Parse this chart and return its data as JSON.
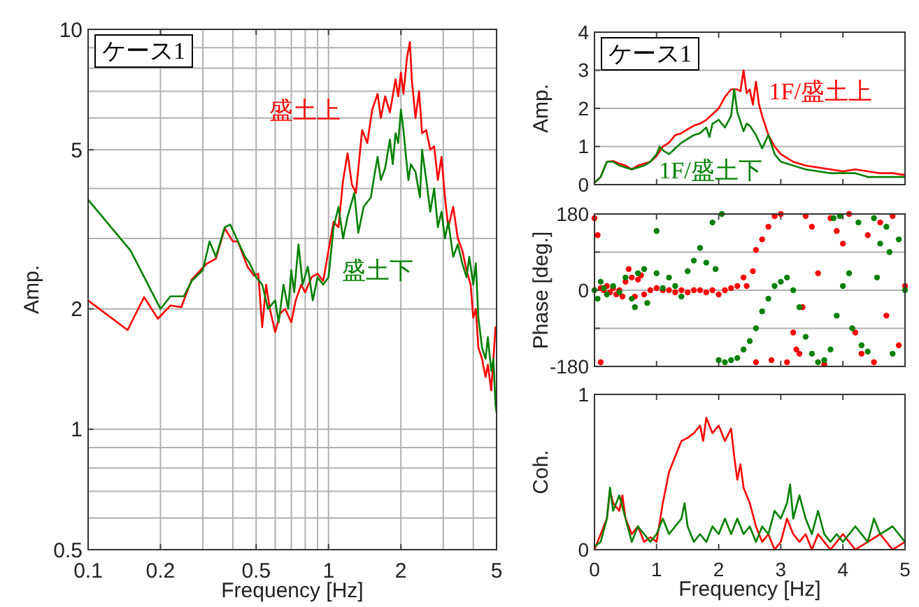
{
  "chart_data": [
    {
      "type": "line",
      "title": "ケース1",
      "xlabel": "Frequency [Hz]",
      "ylabel": "Amp.",
      "log": "xy",
      "grid": true,
      "xlim": [
        0.1,
        5
      ],
      "ylim": [
        0.5,
        10
      ],
      "xticks": [
        0.1,
        0.2,
        0.5,
        1,
        2,
        5
      ],
      "yticks": [
        0.5,
        1,
        2,
        5,
        10
      ],
      "series": [
        {
          "name": "盛土上",
          "color": "#ff0000",
          "x": [
            0.1,
            0.146,
            0.171,
            0.195,
            0.22,
            0.244,
            0.27,
            0.31,
            0.34,
            0.37,
            0.4,
            0.42,
            0.46,
            0.49,
            0.51,
            0.53,
            0.55,
            0.57,
            0.6,
            0.63,
            0.66,
            0.7,
            0.73,
            0.77,
            0.8,
            0.85,
            0.9,
            0.95,
            1.0,
            1.05,
            1.1,
            1.15,
            1.2,
            1.25,
            1.3,
            1.38,
            1.45,
            1.52,
            1.6,
            1.65,
            1.72,
            1.8,
            1.9,
            1.95,
            2.0,
            2.05,
            2.12,
            2.18,
            2.22,
            2.3,
            2.38,
            2.45,
            2.55,
            2.65,
            2.75,
            2.85,
            2.95,
            3.05,
            3.15,
            3.3,
            3.45,
            3.6,
            3.75,
            3.9,
            4.0,
            4.1,
            4.2,
            4.35,
            4.5,
            4.6,
            4.75,
            4.85,
            4.95,
            5.0
          ],
          "values": [
            2.1,
            1.77,
            2.14,
            1.89,
            2.04,
            2.02,
            2.37,
            2.59,
            2.67,
            3.18,
            2.95,
            2.95,
            2.55,
            2.42,
            2.45,
            1.8,
            2.3,
            2.0,
            1.75,
            1.95,
            2.0,
            1.85,
            2.1,
            2.3,
            2.2,
            2.4,
            2.45,
            2.35,
            2.8,
            3.3,
            3.2,
            4.2,
            4.9,
            4.1,
            3.9,
            5.6,
            5.2,
            6.3,
            6.9,
            6.0,
            6.8,
            6.2,
            7.5,
            6.8,
            7.8,
            6.9,
            8.5,
            9.3,
            7.5,
            6.0,
            7.0,
            5.5,
            5.6,
            5.0,
            5.1,
            4.2,
            4.8,
            3.8,
            3.2,
            3.6,
            3.0,
            2.8,
            2.5,
            2.3,
            1.9,
            2.0,
            1.6,
            1.5,
            1.35,
            1.45,
            1.25,
            1.5,
            1.8,
            1.75
          ]
        },
        {
          "name": "盛土下",
          "color": "#008000",
          "x": [
            0.1,
            0.15,
            0.2,
            0.22,
            0.25,
            0.27,
            0.3,
            0.32,
            0.34,
            0.37,
            0.39,
            0.42,
            0.45,
            0.47,
            0.5,
            0.53,
            0.56,
            0.6,
            0.62,
            0.65,
            0.68,
            0.7,
            0.72,
            0.75,
            0.78,
            0.82,
            0.86,
            0.9,
            0.95,
            1.0,
            1.05,
            1.1,
            1.15,
            1.2,
            1.28,
            1.33,
            1.4,
            1.5,
            1.55,
            1.6,
            1.65,
            1.72,
            1.8,
            1.85,
            1.9,
            1.95,
            2.0,
            2.05,
            2.1,
            2.15,
            2.2,
            2.3,
            2.4,
            2.45,
            2.55,
            2.65,
            2.75,
            2.85,
            2.95,
            3.05,
            3.15,
            3.3,
            3.45,
            3.6,
            3.75,
            3.85,
            4.0,
            4.1,
            4.2,
            4.35,
            4.5,
            4.6,
            4.75,
            4.85,
            4.95,
            5.0
          ],
          "values": [
            3.75,
            2.8,
            2.0,
            2.15,
            2.15,
            2.35,
            2.5,
            2.95,
            2.7,
            3.2,
            3.25,
            2.95,
            2.7,
            2.6,
            2.4,
            2.3,
            2.0,
            2.1,
            1.85,
            2.3,
            2.0,
            2.5,
            2.2,
            2.9,
            2.3,
            2.55,
            2.1,
            2.4,
            2.3,
            2.4,
            3.2,
            3.6,
            3.0,
            3.4,
            3.9,
            3.1,
            3.6,
            3.8,
            4.3,
            4.8,
            4.2,
            4.5,
            5.3,
            4.6,
            5.5,
            5.2,
            6.3,
            5.6,
            4.8,
            4.2,
            4.6,
            4.4,
            3.8,
            5.0,
            4.2,
            3.5,
            4.0,
            3.2,
            3.5,
            3.0,
            3.3,
            2.7,
            2.9,
            2.6,
            2.4,
            2.7,
            2.3,
            2.6,
            1.9,
            1.6,
            1.5,
            1.7,
            1.4,
            1.5,
            1.15,
            1.1
          ]
        }
      ]
    },
    {
      "type": "line",
      "title": "ケース1",
      "ylabel": "Amp.",
      "grid": "y",
      "tick_labels": "y",
      "xlim": [
        0,
        5
      ],
      "ylim": [
        0,
        4
      ],
      "xticks": [
        0,
        1,
        2,
        3,
        4,
        5
      ],
      "yticks": [
        0,
        1,
        2,
        3,
        4
      ],
      "series": [
        {
          "name": "1F/盛土上",
          "color": "#ff0000",
          "x": [
            0,
            0.1,
            0.2,
            0.3,
            0.4,
            0.5,
            0.6,
            0.7,
            0.8,
            0.9,
            1.0,
            1.1,
            1.2,
            1.3,
            1.4,
            1.5,
            1.6,
            1.7,
            1.8,
            1.9,
            2.0,
            2.1,
            2.2,
            2.3,
            2.35,
            2.4,
            2.45,
            2.5,
            2.55,
            2.6,
            2.65,
            2.7,
            2.8,
            2.9,
            3.0,
            3.1,
            3.2,
            3.4,
            3.6,
            3.8,
            4.0,
            4.2,
            4.4,
            4.6,
            4.8,
            5.0
          ],
          "values": [
            0.05,
            0.2,
            0.6,
            0.62,
            0.55,
            0.5,
            0.4,
            0.5,
            0.55,
            0.6,
            0.75,
            1.0,
            1.1,
            1.3,
            1.35,
            1.45,
            1.55,
            1.6,
            1.7,
            1.85,
            2.0,
            2.3,
            2.5,
            2.5,
            2.45,
            3.0,
            2.4,
            2.5,
            2.1,
            2.7,
            2.1,
            1.8,
            1.3,
            1.0,
            0.8,
            0.7,
            0.6,
            0.5,
            0.45,
            0.4,
            0.35,
            0.4,
            0.35,
            0.3,
            0.3,
            0.25
          ]
        },
        {
          "name": "1F/盛土下",
          "color": "#008000",
          "x": [
            0,
            0.1,
            0.2,
            0.3,
            0.4,
            0.5,
            0.6,
            0.7,
            0.8,
            0.9,
            1.0,
            1.05,
            1.1,
            1.2,
            1.3,
            1.4,
            1.5,
            1.6,
            1.7,
            1.8,
            1.85,
            1.9,
            2.0,
            2.1,
            2.2,
            2.25,
            2.3,
            2.4,
            2.45,
            2.5,
            2.6,
            2.7,
            2.8,
            2.9,
            3.0,
            3.1,
            3.2,
            3.4,
            3.6,
            3.8,
            4.0,
            4.2,
            4.4,
            4.6,
            4.8,
            5.0
          ],
          "values": [
            0.05,
            0.2,
            0.6,
            0.6,
            0.5,
            0.45,
            0.4,
            0.45,
            0.5,
            0.6,
            0.8,
            1.0,
            0.9,
            0.8,
            0.95,
            1.1,
            1.2,
            1.3,
            1.35,
            1.5,
            1.25,
            1.6,
            1.7,
            1.5,
            1.8,
            2.5,
            1.9,
            1.4,
            1.6,
            1.55,
            1.3,
            0.95,
            1.3,
            0.8,
            0.6,
            0.55,
            0.5,
            0.4,
            0.35,
            0.3,
            0.3,
            0.3,
            0.2,
            0.2,
            0.2,
            0.2
          ]
        }
      ]
    },
    {
      "type": "scatter",
      "ylabel": "Phase [deg.]",
      "grid": "y",
      "tick_labels": "y",
      "marker": "circle",
      "xlim": [
        0,
        5
      ],
      "ylim": [
        -180,
        180
      ],
      "xticks": [
        0,
        1,
        2,
        3,
        4,
        5
      ],
      "yticks": [
        {
          "value": -180,
          "label": "-180"
        },
        {
          "value": -90,
          "label": null
        },
        0,
        {
          "value": 90,
          "label": null
        },
        180
      ],
      "series": [
        {
          "color": "#ff0000",
          "x": [
            0,
            0.05,
            0.1,
            0.1,
            0.15,
            0.2,
            0.25,
            0.3,
            0.35,
            0.4,
            0.45,
            0.5,
            0.55,
            0.6,
            0.65,
            0.7,
            0.75,
            0.8,
            0.9,
            1.0,
            1.1,
            1.2,
            1.3,
            1.4,
            1.5,
            1.6,
            1.7,
            1.8,
            1.9,
            2.0,
            2.1,
            2.2,
            2.3,
            2.4,
            2.45,
            2.55,
            2.6,
            2.7,
            2.8,
            2.9,
            3.0,
            3.1,
            3.2,
            3.3,
            3.4,
            3.5,
            3.6,
            3.7,
            3.8,
            3.9,
            4.0,
            4.1,
            4.2,
            4.3,
            4.4,
            4.5,
            4.6,
            4.7,
            4.8,
            4.9,
            5.0,
            3.35,
            3.25,
            2.6,
            2.85
          ],
          "values": [
            170,
            130,
            -170,
            5,
            0,
            10,
            -5,
            5,
            -10,
            0,
            -15,
            20,
            50,
            30,
            -15,
            25,
            35,
            -10,
            0,
            5,
            0,
            0,
            -5,
            0,
            -5,
            0,
            0,
            -5,
            0,
            -10,
            0,
            5,
            10,
            30,
            10,
            45,
            95,
            120,
            150,
            175,
            180,
            -170,
            -100,
            -150,
            175,
            150,
            40,
            -175,
            170,
            140,
            110,
            180,
            -100,
            -150,
            130,
            -170,
            160,
            -60,
            175,
            -130,
            10,
            -40,
            -140,
            -170,
            -165
          ]
        },
        {
          "color": "#008000",
          "x": [
            0,
            0.05,
            0.1,
            0.15,
            0.2,
            0.3,
            0.4,
            0.5,
            0.6,
            0.65,
            0.7,
            0.8,
            0.85,
            1.0,
            1.0,
            1.1,
            1.2,
            1.3,
            1.4,
            1.5,
            1.6,
            1.7,
            1.8,
            1.9,
            1.95,
            2.05,
            2.0,
            2.1,
            2.2,
            2.3,
            2.4,
            2.5,
            2.6,
            2.7,
            2.8,
            2.9,
            3.0,
            3.1,
            3.2,
            3.3,
            3.4,
            3.5,
            3.6,
            3.7,
            3.8,
            3.9,
            4.0,
            4.1,
            4.15,
            4.3,
            4.4,
            4.5,
            4.6,
            4.7,
            4.8,
            4.9,
            5.0,
            4.55,
            4.75,
            3.85,
            3.95,
            4.25
          ],
          "values": [
            0,
            -20,
            20,
            5,
            -10,
            10,
            -5,
            30,
            -20,
            -40,
            40,
            50,
            -30,
            140,
            40,
            5,
            30,
            10,
            -15,
            45,
            70,
            100,
            65,
            160,
            50,
            180,
            -165,
            -170,
            -165,
            -160,
            -140,
            -120,
            -90,
            -50,
            -20,
            10,
            20,
            30,
            0,
            -40,
            -110,
            -150,
            -170,
            -165,
            -140,
            -60,
            10,
            40,
            -90,
            -130,
            -145,
            170,
            110,
            150,
            -150,
            120,
            0,
            30,
            90,
            170,
            175,
            160
          ]
        }
      ]
    },
    {
      "type": "line",
      "ylabel": "Coh.",
      "xlabel": "Frequency [Hz]",
      "grid": "y",
      "xlim": [
        0,
        5
      ],
      "ylim": [
        0,
        1
      ],
      "xticks": [
        0,
        1,
        2,
        3,
        4,
        5
      ],
      "yticks": [
        0,
        1
      ],
      "series": [
        {
          "color": "#ff0000",
          "x": [
            0,
            0.1,
            0.2,
            0.25,
            0.3,
            0.4,
            0.45,
            0.5,
            0.6,
            0.7,
            0.8,
            0.9,
            1.0,
            1.1,
            1.2,
            1.3,
            1.4,
            1.5,
            1.6,
            1.7,
            1.75,
            1.8,
            1.9,
            2.0,
            2.1,
            2.2,
            2.25,
            2.3,
            2.35,
            2.4,
            2.5,
            2.6,
            2.7,
            2.8,
            2.9,
            3.0,
            3.1,
            3.2,
            3.3,
            3.4,
            3.5,
            3.6,
            3.7,
            3.8,
            3.9,
            4.0,
            4.2,
            4.4,
            4.6,
            4.8,
            5.0
          ],
          "values": [
            0,
            0.1,
            0.2,
            0.38,
            0.3,
            0.25,
            0.35,
            0.2,
            0.1,
            0.15,
            0.05,
            0.08,
            0.05,
            0.3,
            0.5,
            0.6,
            0.7,
            0.72,
            0.75,
            0.8,
            0.7,
            0.85,
            0.75,
            0.8,
            0.7,
            0.78,
            0.6,
            0.45,
            0.55,
            0.4,
            0.3,
            0.15,
            0.05,
            0.1,
            0,
            0.05,
            0.2,
            0.1,
            0.05,
            0.1,
            0,
            0.1,
            0.05,
            0,
            0.05,
            0.1,
            0,
            0.05,
            0.1,
            0,
            0.05
          ]
        },
        {
          "color": "#008000",
          "x": [
            0,
            0.1,
            0.2,
            0.25,
            0.3,
            0.4,
            0.5,
            0.6,
            0.7,
            0.8,
            0.9,
            1.0,
            1.1,
            1.2,
            1.3,
            1.4,
            1.45,
            1.5,
            1.6,
            1.7,
            1.8,
            1.9,
            2.0,
            2.1,
            2.2,
            2.3,
            2.4,
            2.5,
            2.6,
            2.7,
            2.8,
            2.9,
            3.0,
            3.1,
            3.15,
            3.2,
            3.3,
            3.4,
            3.5,
            3.6,
            3.7,
            3.8,
            3.9,
            4.0,
            4.2,
            4.4,
            4.5,
            4.6,
            4.8,
            5.0
          ],
          "values": [
            0.02,
            0.05,
            0.2,
            0.4,
            0.25,
            0.35,
            0.2,
            0.05,
            0.15,
            0.1,
            0.05,
            0.1,
            0.2,
            0.1,
            0.15,
            0.2,
            0.3,
            0.15,
            0.05,
            0.1,
            0.05,
            0.15,
            0.1,
            0.2,
            0.1,
            0.2,
            0.1,
            0.15,
            0.05,
            0.15,
            0.1,
            0.25,
            0.2,
            0.3,
            0.42,
            0.2,
            0.35,
            0.2,
            0.1,
            0.25,
            0.1,
            0.05,
            0.1,
            0.05,
            0.15,
            0.05,
            0.2,
            0.1,
            0.15,
            0.05
          ]
        }
      ]
    }
  ]
}
